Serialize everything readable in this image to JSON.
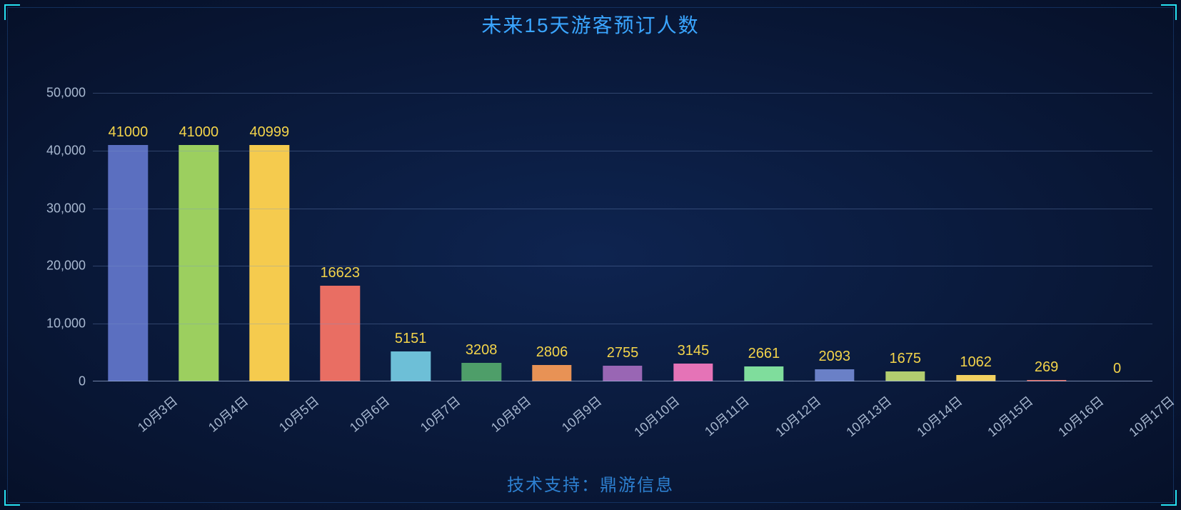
{
  "title": "未来15天游客预订人数",
  "footer": "技术支持：鼎游信息",
  "chart": {
    "type": "bar",
    "categories": [
      "10月3日",
      "10月4日",
      "10月5日",
      "10月6日",
      "10月7日",
      "10月8日",
      "10月9日",
      "10月10日",
      "10月11日",
      "10月12日",
      "10月13日",
      "10月14日",
      "10月15日",
      "10月16日",
      "10月17日"
    ],
    "values": [
      41000,
      41000,
      40999,
      16623,
      5151,
      3208,
      2806,
      2755,
      3145,
      2661,
      2093,
      1675,
      1062,
      269,
      0
    ],
    "bar_colors": [
      "#5b6fc0",
      "#9ccf5f",
      "#f5cb4e",
      "#e96e63",
      "#6dbfd7",
      "#4e9e69",
      "#e89255",
      "#9966b4",
      "#e573b7",
      "#7fdd9c",
      "#6a80c7",
      "#b2cd6f",
      "#f2d060",
      "#e86a5e",
      "#72c0d6"
    ],
    "value_label_color": "#f4d44a",
    "value_label_fontsize": 20,
    "ylim": [
      0,
      50000
    ],
    "ytick_step": 10000,
    "ytick_labels": [
      "0",
      "10,000",
      "20,000",
      "30,000",
      "40,000",
      "50,000"
    ],
    "axis_label_color": "#a8b8d0",
    "axis_label_fontsize": 18,
    "grid_color": "rgba(120,150,200,0.35)",
    "background_color": "transparent",
    "bar_width_ratio": 0.56,
    "xtick_rotation_deg": -40,
    "title_color": "#3aa5ff",
    "title_fontsize": 28,
    "footer_color": "#2d7fcf",
    "footer_fontsize": 24,
    "corner_color": "#27e0f0"
  }
}
